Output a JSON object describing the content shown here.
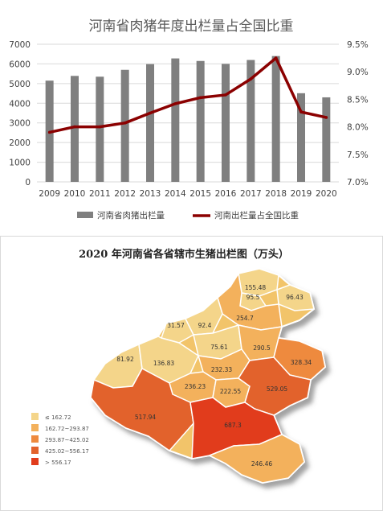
{
  "chart_data": [
    {
      "type": "bar+line",
      "title": "河南省肉猪年度出栏量占全国比重",
      "categories": [
        "2009",
        "2010",
        "2011",
        "2012",
        "2013",
        "2014",
        "2015",
        "2016",
        "2017",
        "2018",
        "2019",
        "2020"
      ],
      "series": [
        {
          "name": "河南省肉猪出栏量",
          "type": "bar",
          "axis": "left",
          "color": "#7f7f7f",
          "values": [
            5150,
            5390,
            5350,
            5700,
            5990,
            6280,
            6150,
            6000,
            6200,
            6400,
            4510,
            4300
          ]
        },
        {
          "name": "河南出栏量占全国比重",
          "type": "line",
          "axis": "right",
          "color": "#8b0000",
          "values": [
            7.9,
            8.0,
            8.0,
            8.07,
            8.25,
            8.42,
            8.53,
            8.58,
            8.87,
            9.25,
            8.27,
            8.17
          ]
        }
      ],
      "left_axis": {
        "ticks": [
          "0",
          "1000",
          "2000",
          "3000",
          "4000",
          "5000",
          "6000",
          "7000"
        ],
        "min": 0,
        "max": 7000
      },
      "right_axis": {
        "ticks": [
          "7.0%",
          "7.5%",
          "8.0%",
          "8.5%",
          "9.0%",
          "9.5%"
        ],
        "min": 7.0,
        "max": 9.5
      },
      "grid": true,
      "legend_position": "bottom"
    },
    {
      "type": "choropleth",
      "title": "2020 年河南省各省辖市生猪出栏图（万头）",
      "regions": [
        {
          "label": "155.48",
          "value": 155.48,
          "color": "#f4d58a"
        },
        {
          "label": "95.5",
          "value": 95.5,
          "color": "#f4d58a"
        },
        {
          "label": "96.43",
          "value": 96.43,
          "color": "#f4d58a"
        },
        {
          "label": "254.7",
          "value": 254.7,
          "color": "#f3b15c"
        },
        {
          "label": "31.57",
          "value": 31.57,
          "color": "#f4d58a"
        },
        {
          "label": "92.4",
          "value": 92.4,
          "color": "#f4d58a"
        },
        {
          "label": "75.61",
          "value": 75.61,
          "color": "#f4d58a"
        },
        {
          "label": "81.92",
          "value": 81.92,
          "color": "#f4d58a"
        },
        {
          "label": "136.83",
          "value": 136.83,
          "color": "#f4d58a"
        },
        {
          "label": "290.5",
          "value": 290.5,
          "color": "#f3b15c"
        },
        {
          "label": "328.34",
          "value": 328.34,
          "color": "#ee8a3e"
        },
        {
          "label": "232.33",
          "value": 232.33,
          "color": "#f3b15c"
        },
        {
          "label": "236.23",
          "value": 236.23,
          "color": "#f3b15c"
        },
        {
          "label": "222.55",
          "value": 222.55,
          "color": "#f3b15c"
        },
        {
          "label": "529.05",
          "value": 529.05,
          "color": "#e2622c"
        },
        {
          "label": "517.94",
          "value": 517.94,
          "color": "#e2622c"
        },
        {
          "label": "687.3",
          "value": 687.3,
          "color": "#e13c1c"
        },
        {
          "label": "246.46",
          "value": 246.46,
          "color": "#f3b15c"
        }
      ],
      "legend": [
        {
          "label": "≤ 162.72",
          "color": "#f4d58a"
        },
        {
          "label": "162.72~293.87",
          "color": "#f3b15c"
        },
        {
          "label": "293.87~425.02",
          "color": "#ee8a3e"
        },
        {
          "label": "425.02~556.17",
          "color": "#e2622c"
        },
        {
          "label": "> 556.17",
          "color": "#e13c1c"
        }
      ]
    }
  ]
}
